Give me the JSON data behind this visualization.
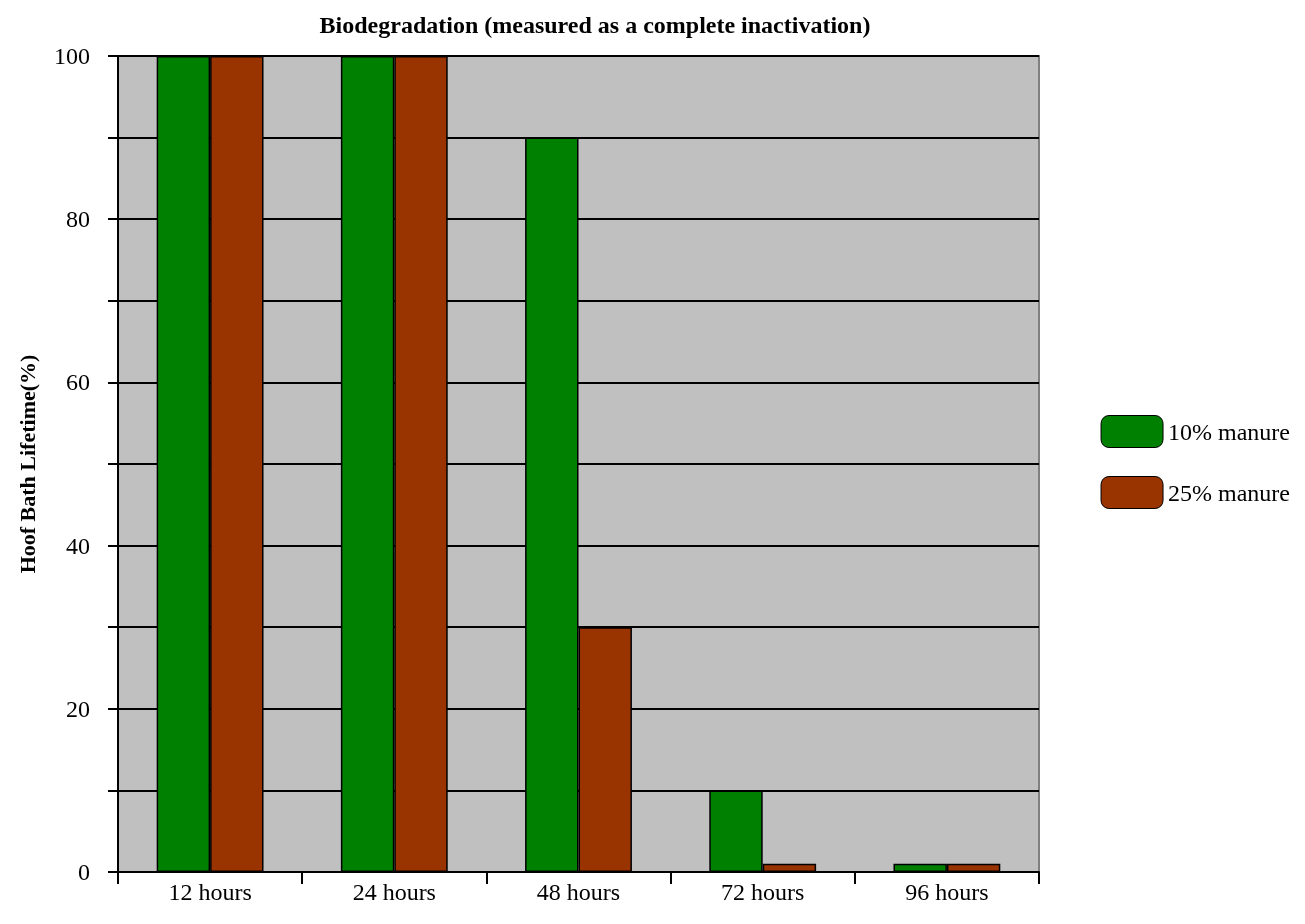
{
  "chart_data": {
    "type": "bar",
    "title": "Biodegradation (measured as a complete inactivation)",
    "ylabel": "Hoof Bath Lifetime(%)",
    "categories": [
      "12 hours",
      "24 hours",
      "48 hours",
      "72 hours",
      "96 hours"
    ],
    "series": [
      {
        "name": "10% manure",
        "color": "#008000",
        "values": [
          100,
          100,
          90,
          10,
          1
        ]
      },
      {
        "name": "25% manure",
        "color": "#993300",
        "values": [
          100,
          100,
          30,
          1,
          1
        ]
      }
    ],
    "ylim": [
      0,
      100
    ],
    "yticks": [
      0,
      {
        "value": 10,
        "label": null
      },
      20,
      {
        "value": 30,
        "label": null
      },
      40,
      {
        "value": 50,
        "label": null
      },
      60,
      {
        "value": 70,
        "label": null
      },
      80,
      {
        "value": 90,
        "label": null
      },
      100
    ],
    "grid": "y",
    "legend": "right"
  }
}
